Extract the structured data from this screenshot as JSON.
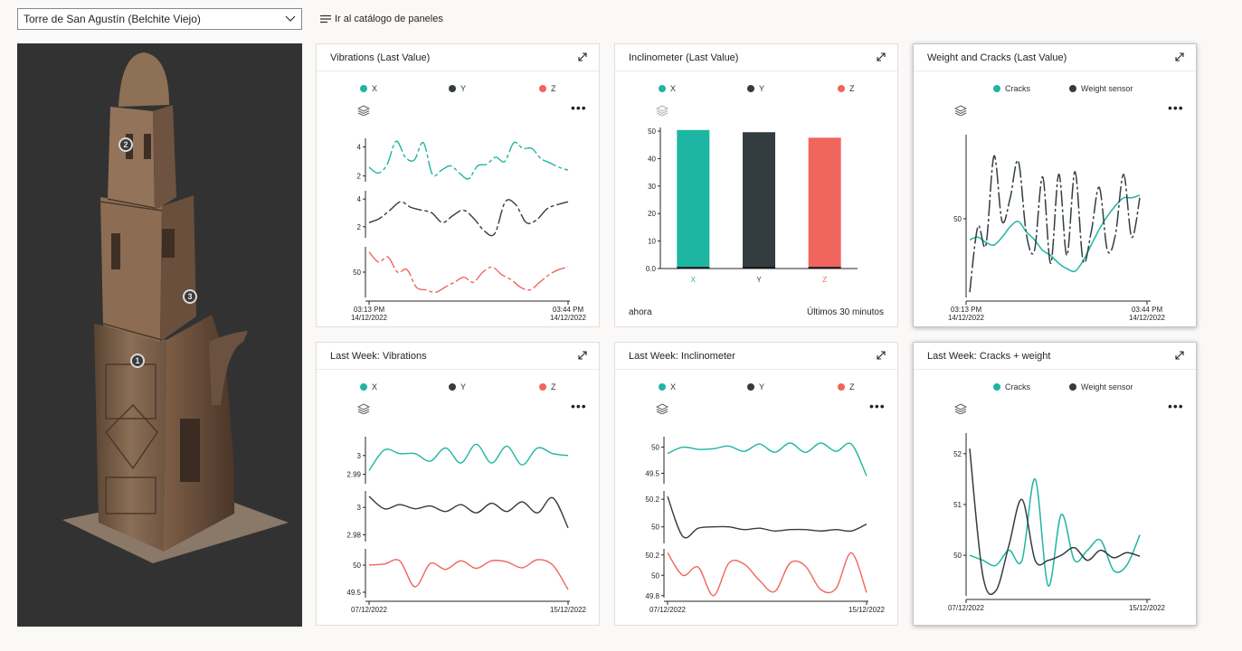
{
  "header": {
    "site_select_value": "Torre de San Agustín (Belchite Viejo)",
    "catalog_link": "Ir al catálogo de paneles"
  },
  "model": {
    "markers": [
      "1",
      "2",
      "3"
    ]
  },
  "colors": {
    "x": "#1fb5a3",
    "y": "#333d40",
    "z": "#f0655e",
    "cracks": "#1fb5a3",
    "weight": "#333d40"
  },
  "tiles": [
    {
      "title": "Vibrations (Last Value)",
      "legend": [
        {
          "label": "X",
          "color": "#1fb5a3"
        },
        {
          "label": "Y",
          "color": "#333d40"
        },
        {
          "label": "Z",
          "color": "#f0655e"
        }
      ],
      "chart_data": {
        "type": "line",
        "layout": "stacked-panels",
        "x_labels": [
          [
            "03:13 PM",
            "14/12/2022"
          ],
          [
            "03:44 PM",
            "14/12/2022"
          ]
        ],
        "series": [
          {
            "name": "X",
            "ticks": [
              "4",
              "2"
            ],
            "ylim": [
              1.6,
              4.6
            ],
            "values": [
              2.6,
              2.2,
              2.8,
              4.4,
              3.3,
              3.1,
              4.3,
              2.1,
              2.4,
              2.7,
              2.2,
              1.8,
              2.7,
              2.8,
              3.3,
              3.0,
              4.3,
              3.9,
              3.9,
              3.2,
              2.9,
              2.6,
              2.4
            ]
          },
          {
            "name": "Y",
            "ticks": [
              "4",
              "2"
            ],
            "ylim": [
              1.2,
              4.6
            ],
            "values": [
              2.3,
              2.6,
              3.2,
              3.8,
              3.4,
              3.2,
              3.0,
              2.3,
              2.8,
              3.2,
              2.6,
              1.7,
              1.5,
              3.8,
              3.6,
              2.3,
              2.5,
              3.3,
              3.6,
              3.8
            ]
          },
          {
            "name": "Z",
            "ticks": [
              "50"
            ],
            "ylim": [
              40,
              60
            ],
            "values": [
              58,
              54,
              56,
              50,
              51,
              44,
              43,
              42,
              44,
              46,
              48,
              46,
              50,
              52,
              49,
              47,
              44,
              43,
              46,
              49,
              51,
              52
            ]
          }
        ]
      }
    },
    {
      "title": "Inclinometer (Last Value)",
      "legend": [
        {
          "label": "X",
          "color": "#1fb5a3"
        },
        {
          "label": "Y",
          "color": "#333d40"
        },
        {
          "label": "Z",
          "color": "#f0655e"
        }
      ],
      "footer_left": "ahora",
      "footer_right": "Últimos 30 minutos",
      "chart_data": {
        "type": "bar",
        "categories": [
          "X",
          "Y",
          "Z"
        ],
        "values": [
          50.4,
          49.6,
          47.6
        ],
        "ylim": [
          0,
          50
        ],
        "yticks": [
          "0.0",
          "10",
          "20",
          "30",
          "40",
          "50"
        ]
      }
    },
    {
      "title": "Weight and Cracks (Last Value)",
      "legend": [
        {
          "label": "Cracks",
          "color": "#1fb5a3"
        },
        {
          "label": "Weight sensor",
          "color": "#333d40"
        }
      ],
      "chart_data": {
        "type": "line",
        "x_labels": [
          [
            "03:13 PM",
            "14/12/2022"
          ],
          [
            "03:44 PM",
            "14/12/2022"
          ]
        ],
        "yticks": [
          "50"
        ],
        "ylim": [
          20,
          80
        ],
        "series": [
          {
            "name": "Cracks",
            "values": [
              42,
              43,
              41,
              40,
              43,
              47,
              49,
              45,
              42,
              38,
              36,
              33,
              31,
              30,
              34,
              40,
              46,
              51,
              55,
              58,
              58,
              59
            ]
          },
          {
            "name": "Weight sensor",
            "values": [
              22,
              47,
              40,
              74,
              49,
              58,
              72,
              44,
              38,
              66,
              33,
              67,
              36,
              68,
              34,
              45,
              62,
              38,
              44,
              67,
              43,
              58
            ]
          }
        ]
      }
    },
    {
      "title": "Last Week: Vibrations",
      "legend": [
        {
          "label": "X",
          "color": "#1fb5a3"
        },
        {
          "label": "Y",
          "color": "#333d40"
        },
        {
          "label": "Z",
          "color": "#f0655e"
        }
      ],
      "chart_data": {
        "type": "line",
        "layout": "stacked-panels",
        "x_labels": [
          [
            "07/12/2022"
          ],
          [
            "15/12/2022"
          ]
        ],
        "series": [
          {
            "name": "X",
            "ticks": [
              "3",
              "2.99"
            ],
            "ylim": [
              2.985,
              3.01
            ],
            "values": [
              2.992,
              3.003,
              3.001,
              3.001,
              2.997,
              3.004,
              2.996,
              3.006,
              2.996,
              3.005,
              2.995,
              3.004,
              3.001,
              3.0
            ]
          },
          {
            "name": "Y",
            "ticks": [
              "3",
              "2.98"
            ],
            "ylim": [
              2.975,
              3.012
            ],
            "values": [
              3.008,
              2.999,
              3.002,
              2.999,
              3.001,
              2.997,
              3.002,
              2.996,
              3.003,
              2.997,
              3.004,
              2.996,
              3.007,
              2.985
            ]
          },
          {
            "name": "Z",
            "ticks": [
              "50",
              "49.5"
            ],
            "ylim": [
              49.4,
              50.3
            ],
            "values": [
              50.0,
              50.02,
              50.08,
              49.6,
              50.03,
              49.92,
              50.08,
              49.94,
              50.08,
              50.06,
              49.95,
              50.1,
              50.0,
              49.55
            ]
          }
        ]
      }
    },
    {
      "title": "Last Week: Inclinometer",
      "legend": [
        {
          "label": "X",
          "color": "#1fb5a3"
        },
        {
          "label": "Y",
          "color": "#333d40"
        },
        {
          "label": "Z",
          "color": "#f0655e"
        }
      ],
      "chart_data": {
        "type": "line",
        "layout": "stacked-panels",
        "x_labels": [
          [
            "07/12/2022"
          ],
          [
            "15/12/2022"
          ]
        ],
        "series": [
          {
            "name": "X",
            "ticks": [
              "50",
              "49.5"
            ],
            "ylim": [
              49.3,
              50.2
            ],
            "values": [
              49.88,
              50.0,
              49.96,
              49.97,
              50.02,
              49.92,
              50.06,
              49.9,
              50.08,
              49.9,
              50.08,
              49.92,
              50.06,
              49.45
            ]
          },
          {
            "name": "Y",
            "ticks": [
              "50.2",
              "50"
            ],
            "ylim": [
              49.88,
              50.26
            ],
            "values": [
              50.22,
              49.93,
              49.99,
              50.0,
              50.0,
              49.98,
              49.99,
              49.97,
              49.98,
              49.98,
              49.97,
              49.98,
              49.97,
              50.02
            ]
          },
          {
            "name": "Z",
            "ticks": [
              "50.2",
              "50",
              "49.8"
            ],
            "ylim": [
              49.78,
              50.26
            ],
            "values": [
              50.22,
              50.0,
              50.08,
              49.8,
              50.12,
              50.11,
              49.95,
              49.84,
              50.12,
              50.09,
              49.86,
              49.87,
              50.22,
              49.83
            ]
          }
        ]
      }
    },
    {
      "title": "Last Week: Cracks + weight",
      "legend": [
        {
          "label": "Cracks",
          "color": "#1fb5a3"
        },
        {
          "label": "Weight sensor",
          "color": "#333d40"
        }
      ],
      "chart_data": {
        "type": "line",
        "x_labels": [
          [
            "07/12/2022"
          ],
          [
            "15/12/2022"
          ]
        ],
        "yticks": [
          "52",
          "51",
          "50"
        ],
        "ylim": [
          49.2,
          52.3
        ],
        "series": [
          {
            "name": "Cracks",
            "values": [
              50.0,
              49.9,
              49.8,
              50.1,
              49.9,
              51.5,
              49.4,
              50.8,
              49.9,
              50.1,
              50.3,
              49.7,
              49.8,
              50.4
            ]
          },
          {
            "name": "Weight sensor",
            "values": [
              52.1,
              49.6,
              49.3,
              50.2,
              51.1,
              49.9,
              49.9,
              50.0,
              50.15,
              49.9,
              50.1,
              49.95,
              50.05,
              49.98
            ]
          }
        ]
      }
    }
  ]
}
